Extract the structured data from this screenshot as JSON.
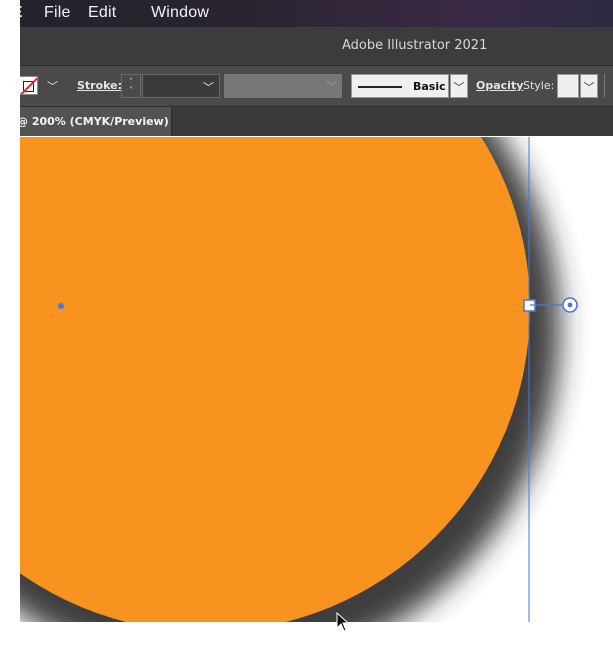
{
  "menubar": {
    "app_fragment": "RE",
    "items": [
      "File",
      "Edit",
      "Window"
    ]
  },
  "titlebar": {
    "title": "Adobe Illustrator 2021"
  },
  "controlbar": {
    "stroke_label": "Stroke:",
    "brush_label": "Basic",
    "opacity_label": "Opacity",
    "style_label": "Style:"
  },
  "document_tab": {
    "label": "@ 200% (CMYK/Preview)"
  },
  "canvas": {
    "fill_color": "#f7931e",
    "selection_color": "#4a78d6",
    "artboard_color": "#ffffff"
  },
  "icons": {
    "fill_swatch": "none-swatch-icon",
    "cursor": "arrow-cursor-icon"
  }
}
